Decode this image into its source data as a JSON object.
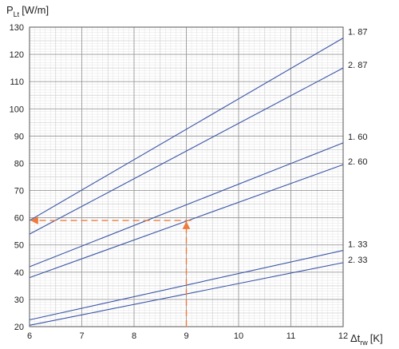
{
  "chart_data": {
    "type": "line",
    "ylabel_main": "P",
    "ylabel_sub": "Lt",
    "ylabel_unit": "[W/m]",
    "xlabel_main": "Δt",
    "xlabel_sub": "rw",
    "xlabel_unit": "[K]",
    "xlim": [
      6,
      12
    ],
    "ylim": [
      20,
      130
    ],
    "x_ticks": [
      "6",
      "7",
      "8",
      "9",
      "10",
      "11",
      "12"
    ],
    "y_ticks": [
      "20",
      "30",
      "40",
      "50",
      "60",
      "70",
      "80",
      "90",
      "100",
      "110",
      "120",
      "130"
    ],
    "grid": true,
    "colors": {
      "series": "#3a55a6",
      "annotation": "#ee7a3c",
      "grid": "#c8c8c8"
    },
    "series": [
      {
        "name": "1. 87",
        "x": [
          6,
          12
        ],
        "y": [
          59,
          126
        ]
      },
      {
        "name": "2. 87",
        "x": [
          6,
          12
        ],
        "y": [
          54,
          115
        ]
      },
      {
        "name": "1. 60",
        "x": [
          6,
          12
        ],
        "y": [
          42,
          87.5
        ]
      },
      {
        "name": "2. 60",
        "x": [
          6,
          12
        ],
        "y": [
          38,
          79.5
        ]
      },
      {
        "name": "1. 33",
        "x": [
          6,
          12
        ],
        "y": [
          22.5,
          48
        ]
      },
      {
        "name": "2. 33",
        "x": [
          6,
          12
        ],
        "y": [
          20.5,
          43.5
        ]
      }
    ],
    "annotation": {
      "x": 9,
      "y": 59
    }
  }
}
